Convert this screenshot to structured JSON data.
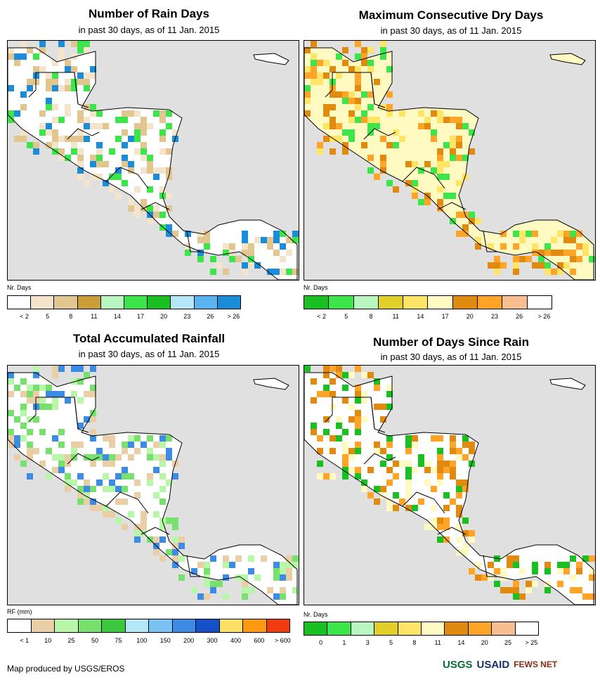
{
  "panels": [
    {
      "title": "Number of Rain Days",
      "subtitle": "in past 30 days, as of 11 Jan. 2015",
      "legend_title": "Nr. Days",
      "legend_colors": [
        "#ffffff",
        "#f5e4cc",
        "#e2c690",
        "#cc9e3a",
        "#b9f7c1",
        "#3ce64a",
        "#18c022",
        "#b4e8f8",
        "#5ab4f2",
        "#1a8cd8"
      ],
      "legend_labels": [
        "< 2",
        "5",
        "8",
        "11",
        "14",
        "17",
        "20",
        "23",
        "26",
        "> 26"
      ],
      "dominant": "#ffffff",
      "accents": [
        "#f5e4cc",
        "#e2c690",
        "#3ce64a",
        "#1a8cd8"
      ]
    },
    {
      "title": "Maximum Consecutive Dry Days",
      "subtitle": "in past 30 days, as of 11 Jan. 2015",
      "legend_title": "Nr. Days",
      "legend_colors": [
        "#18c022",
        "#3ce64a",
        "#b9f7c1",
        "#e2cf28",
        "#ffe566",
        "#fff9c2",
        "#e08a10",
        "#ffa426",
        "#f8be90",
        "#ffffff"
      ],
      "legend_labels": [
        "< 2",
        "5",
        "8",
        "11",
        "14",
        "17",
        "20",
        "23",
        "26",
        "> 26"
      ],
      "dominant": "#fff9c2",
      "accents": [
        "#ffe566",
        "#e08a10",
        "#ffa426",
        "#3ce64a"
      ]
    },
    {
      "title": "Total Accumulated Rainfall",
      "subtitle": "in past 30 days, as of 11 Jan. 2015",
      "legend_title": "RF (mm)",
      "legend_colors": [
        "#ffffff",
        "#eacfa6",
        "#b9f7a8",
        "#78e06c",
        "#3cc83c",
        "#b4e8f8",
        "#7ac2f4",
        "#3c8ce6",
        "#1450c8",
        "#ffe066",
        "#ff9a10",
        "#f03c10"
      ],
      "legend_labels": [
        "< 1",
        "10",
        "25",
        "50",
        "75",
        "100",
        "150",
        "200",
        "300",
        "400",
        "600",
        "> 600"
      ],
      "dominant": "#ffffff",
      "accents": [
        "#b9f7a8",
        "#78e06c",
        "#eacfa6",
        "#3c8ce6"
      ]
    },
    {
      "title": "Number of Days Since Rain",
      "subtitle": "in past 30 days, as of 11 Jan. 2015",
      "legend_title": "Nr. Days",
      "legend_colors": [
        "#18c022",
        "#3ce64a",
        "#b9f7c1",
        "#e2cf28",
        "#ffe566",
        "#fff9c2",
        "#e08a10",
        "#ffa426",
        "#f8be90",
        "#ffffff"
      ],
      "legend_labels": [
        "0",
        "1",
        "3",
        "5",
        "8",
        "11",
        "14",
        "20",
        "25",
        "> 25"
      ],
      "dominant": "#ffffff",
      "accents": [
        "#18c022",
        "#e08a10",
        "#ffa426",
        "#fff9c2"
      ]
    }
  ],
  "credit": "Map produced by USGS/EROS",
  "logos": [
    "USGS",
    "USAID",
    "FEWS NET"
  ]
}
